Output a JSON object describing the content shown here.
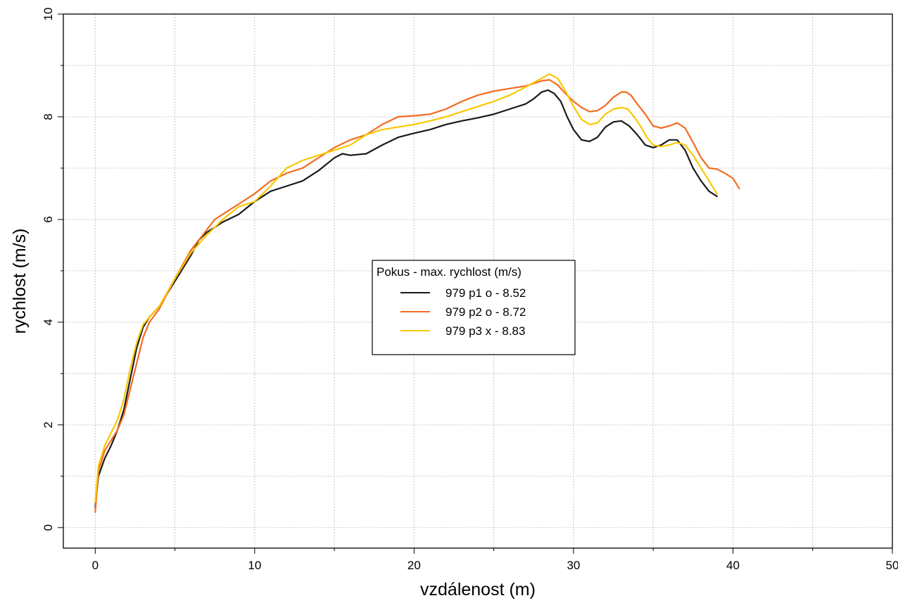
{
  "chart_data": {
    "type": "line",
    "xlabel": "vzdálenost (m)",
    "ylabel": "rychlost (m/s)",
    "xlim": [
      -2,
      50
    ],
    "ylim": [
      -0.4,
      10
    ],
    "x_ticks": [
      "0",
      "10",
      "20",
      "30",
      "40",
      "50"
    ],
    "y_ticks": [
      "0",
      "2",
      "4",
      "6",
      "8",
      "10"
    ],
    "grid": true,
    "legend": {
      "title": "Pokus - max. rychlost (m/s)",
      "placement": "center"
    },
    "series": [
      {
        "name": "979 p1 o - 8.52",
        "color": "#1a1a1a",
        "x": [
          0,
          0.2,
          0.6,
          1.0,
          1.4,
          1.8,
          2.2,
          2.6,
          3.0,
          3.4,
          4.0,
          5.0,
          6.0,
          6.5,
          7.0,
          7.5,
          8.0,
          9.0,
          10.0,
          11.0,
          12.0,
          13.0,
          14.0,
          15.0,
          15.5,
          16.0,
          17.0,
          18.0,
          19.0,
          20.0,
          21.0,
          22.0,
          23.0,
          24.0,
          25.0,
          26.0,
          27.0,
          27.5,
          28.0,
          28.4,
          28.8,
          29.2,
          29.6,
          30.0,
          30.5,
          31.0,
          31.5,
          32.0,
          32.5,
          33.0,
          33.5,
          34.0,
          34.5,
          35.0,
          35.5,
          36.0,
          36.5,
          37.0,
          37.5,
          38.0,
          38.5,
          39.0
        ],
        "y": [
          0.4,
          1.0,
          1.35,
          1.6,
          1.9,
          2.3,
          2.9,
          3.5,
          3.9,
          4.1,
          4.3,
          4.8,
          5.3,
          5.6,
          5.75,
          5.85,
          5.95,
          6.1,
          6.35,
          6.55,
          6.65,
          6.75,
          6.95,
          7.2,
          7.28,
          7.25,
          7.28,
          7.45,
          7.6,
          7.68,
          7.75,
          7.85,
          7.92,
          7.98,
          8.05,
          8.15,
          8.25,
          8.35,
          8.48,
          8.52,
          8.45,
          8.3,
          8.0,
          7.75,
          7.55,
          7.52,
          7.6,
          7.8,
          7.9,
          7.92,
          7.82,
          7.65,
          7.45,
          7.4,
          7.45,
          7.55,
          7.55,
          7.35,
          7.0,
          6.75,
          6.55,
          6.45
        ]
      },
      {
        "name": "979 p2 o - 8.72",
        "color": "#f36b21",
        "x": [
          0,
          0.2,
          0.6,
          1.0,
          1.4,
          1.8,
          2.2,
          2.6,
          3.0,
          3.4,
          4.0,
          5.0,
          6.0,
          7.0,
          7.5,
          8.0,
          9.0,
          10.0,
          11.0,
          12.0,
          13.0,
          14.0,
          15.0,
          16.0,
          17.0,
          18.0,
          19.0,
          20.0,
          21.0,
          22.0,
          23.0,
          24.0,
          25.0,
          26.0,
          27.0,
          28.0,
          28.5,
          29.0,
          29.5,
          30.0,
          30.5,
          31.0,
          31.5,
          32.0,
          32.5,
          33.0,
          33.3,
          33.6,
          34.0,
          34.5,
          35.0,
          35.5,
          36.0,
          36.5,
          37.0,
          37.5,
          38.0,
          38.5,
          39.0,
          39.5,
          40.0,
          40.4
        ],
        "y": [
          0.3,
          1.1,
          1.5,
          1.7,
          1.9,
          2.2,
          2.7,
          3.2,
          3.7,
          4.0,
          4.25,
          4.85,
          5.4,
          5.8,
          6.0,
          6.1,
          6.3,
          6.5,
          6.75,
          6.9,
          7.0,
          7.2,
          7.4,
          7.55,
          7.65,
          7.85,
          8.0,
          8.02,
          8.05,
          8.15,
          8.3,
          8.42,
          8.5,
          8.55,
          8.6,
          8.7,
          8.72,
          8.62,
          8.45,
          8.3,
          8.18,
          8.1,
          8.12,
          8.22,
          8.38,
          8.48,
          8.48,
          8.42,
          8.25,
          8.05,
          7.82,
          7.78,
          7.82,
          7.88,
          7.78,
          7.5,
          7.2,
          7.0,
          6.98,
          6.9,
          6.8,
          6.6
        ]
      },
      {
        "name": "979 p3 x - 8.83",
        "color": "#f9c800",
        "x": [
          0,
          0.2,
          0.6,
          1.0,
          1.4,
          1.8,
          2.2,
          2.6,
          3.0,
          3.4,
          4.0,
          5.0,
          6.0,
          7.0,
          7.5,
          8.0,
          9.0,
          10.0,
          11.0,
          12.0,
          13.0,
          14.0,
          15.0,
          16.0,
          17.0,
          18.0,
          19.0,
          20.0,
          21.0,
          22.0,
          23.0,
          24.0,
          25.0,
          26.0,
          27.0,
          28.0,
          28.5,
          29.0,
          29.5,
          30.0,
          30.5,
          31.0,
          31.5,
          32.0,
          32.5,
          33.0,
          33.4,
          33.8,
          34.2,
          34.6,
          35.0,
          35.5,
          36.0,
          36.5,
          37.0,
          37.5,
          38.0,
          38.5,
          39.0
        ],
        "y": [
          0.5,
          1.2,
          1.6,
          1.85,
          2.1,
          2.5,
          3.1,
          3.6,
          3.95,
          4.1,
          4.3,
          4.85,
          5.35,
          5.7,
          5.85,
          6.0,
          6.25,
          6.35,
          6.65,
          7.0,
          7.15,
          7.25,
          7.35,
          7.45,
          7.65,
          7.75,
          7.8,
          7.85,
          7.92,
          8.0,
          8.1,
          8.2,
          8.3,
          8.42,
          8.58,
          8.75,
          8.83,
          8.75,
          8.5,
          8.2,
          7.95,
          7.85,
          7.88,
          8.05,
          8.15,
          8.18,
          8.15,
          8.0,
          7.82,
          7.6,
          7.45,
          7.42,
          7.45,
          7.5,
          7.45,
          7.25,
          7.0,
          6.75,
          6.5
        ]
      }
    ]
  }
}
